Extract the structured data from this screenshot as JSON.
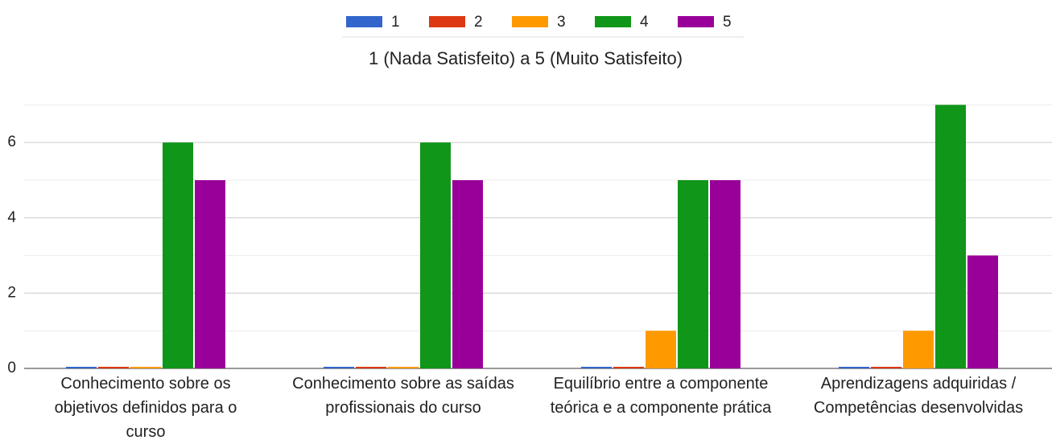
{
  "chart_data": {
    "type": "bar",
    "title": "1 (Nada Satisfeito) a 5 (Muito Satisfeito)",
    "categories": [
      "Conhecimento sobre os objetivos definidos para o curso",
      "Conhecimento sobre as saídas profissionais do curso",
      "Equilíbrio entre a componente teórica e a componente prática",
      "Aprendizagens adquiridas / Competências desenvolvidas"
    ],
    "series": [
      {
        "name": "1",
        "color": "#3366cc",
        "values": [
          0,
          0,
          0,
          0
        ]
      },
      {
        "name": "2",
        "color": "#dc3912",
        "values": [
          0,
          0,
          0,
          0
        ]
      },
      {
        "name": "3",
        "color": "#ff9900",
        "values": [
          0,
          0,
          1,
          1
        ]
      },
      {
        "name": "4",
        "color": "#109618",
        "values": [
          6,
          6,
          5,
          7
        ]
      },
      {
        "name": "5",
        "color": "#990099",
        "values": [
          5,
          5,
          5,
          3
        ]
      }
    ],
    "ylim": [
      0,
      7.2
    ],
    "yticks": [
      0,
      2,
      4,
      6
    ],
    "minor_yticks": [
      1,
      3,
      5,
      7
    ],
    "grid": true,
    "legend": "top"
  }
}
